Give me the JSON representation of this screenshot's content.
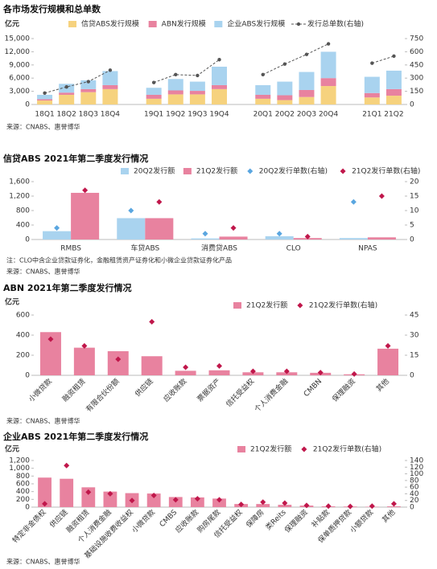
{
  "chart_data": [
    {
      "type": "bar",
      "stacked": true,
      "title": "各市场发行规模和总单数",
      "unit": "亿元",
      "source": "来源：CNABS、惠誉博华",
      "categories": [
        "18Q1",
        "18Q2",
        "18Q3",
        "18Q4",
        null,
        "19Q1",
        "19Q2",
        "19Q3",
        "19Q4",
        null,
        "20Q1",
        "20Q2",
        "20Q3",
        "20Q4",
        null,
        "21Q1",
        "21Q2"
      ],
      "series": [
        {
          "name": "信贷ABS发行规模",
          "type": "bar",
          "color": "#f6d27e",
          "values": [
            900,
            2200,
            2800,
            3500,
            null,
            1300,
            2300,
            2300,
            3500,
            null,
            1300,
            1000,
            1700,
            4200,
            null,
            1600,
            2000
          ]
        },
        {
          "name": "ABN发行规模",
          "type": "bar",
          "color": "#e8829f",
          "values": [
            300,
            500,
            700,
            900,
            null,
            900,
            900,
            800,
            900,
            null,
            900,
            1100,
            1600,
            1800,
            null,
            1000,
            1500
          ]
        },
        {
          "name": "企业ABS发行规模",
          "type": "bar",
          "color": "#a9d3ef",
          "values": [
            1000,
            2000,
            2000,
            3200,
            null,
            1600,
            2600,
            2100,
            4200,
            null,
            2200,
            3100,
            4100,
            6000,
            null,
            3700,
            4200
          ]
        },
        {
          "name": "发行总单数(右轴)",
          "type": "line",
          "axis": "y2",
          "color": "#555555",
          "values": [
            130,
            200,
            260,
            390,
            null,
            250,
            340,
            330,
            510,
            null,
            340,
            460,
            570,
            690,
            null,
            470,
            550
          ]
        }
      ],
      "ylim": [
        0,
        15000
      ],
      "yticks": [
        0,
        {
          "value": 3000,
          "label": "3,000"
        },
        {
          "value": 6000,
          "label": "6,000"
        },
        {
          "value": 9000,
          "label": "9,000"
        },
        {
          "value": 12000,
          "label": "12,000"
        },
        {
          "value": 15000,
          "label": "15,000"
        }
      ],
      "y2lim": [
        0,
        750
      ],
      "y2ticks": [
        0,
        150,
        300,
        450,
        600,
        750
      ],
      "grid": false
    },
    {
      "type": "bar",
      "stacked": false,
      "title": "信贷ABS 2021年第二季度发行情况",
      "note": "注：CLO中含企业贷款证券化，金融租赁资产证券化和小微企业贷款证券化产品",
      "source": "来源：CNABS、惠誉博华",
      "categories": [
        "RMBS",
        "车贷ABS",
        "消费贷ABS",
        "CLO",
        "NPAS"
      ],
      "series": [
        {
          "name": "20Q2发行额",
          "type": "bar",
          "color": "#a9d3ef",
          "values": [
            230,
            590,
            30,
            90,
            40
          ]
        },
        {
          "name": "21Q2发行额",
          "type": "bar",
          "color": "#e8829f",
          "values": [
            1290,
            590,
            80,
            40,
            60
          ]
        },
        {
          "name": "20Q2发行单数(右轴)",
          "type": "scatter",
          "axis": "y2",
          "color": "#5aa6e0",
          "values": [
            4,
            10,
            2,
            2,
            13
          ]
        },
        {
          "name": "21Q2发行单数(右轴)",
          "type": "scatter",
          "axis": "y2",
          "color": "#c0174b",
          "values": [
            17,
            13,
            4,
            1,
            15
          ]
        }
      ],
      "ylim": [
        0,
        1600
      ],
      "yticks": [
        0,
        400,
        800,
        {
          "value": 1200,
          "label": "1,200"
        },
        {
          "value": 1600,
          "label": "1,600"
        }
      ],
      "y2lim": [
        0,
        20
      ],
      "y2ticks": [
        0,
        5,
        10,
        15,
        20
      ],
      "grid": false
    },
    {
      "type": "bar",
      "stacked": false,
      "title": "ABN 2021年第二季度发行情况",
      "unit": "亿元",
      "source": "来源：CNABS、惠誉博华",
      "categories": [
        "小微贷款",
        "融资租赁",
        "有限合伙份额",
        "供应链",
        "应收账款",
        "票据资产",
        "信托受益权",
        "个人消费金融",
        "CMBN",
        "保理融资",
        "其他"
      ],
      "series": [
        {
          "name": "21Q2发行额",
          "type": "bar",
          "color": "#e8829f",
          "values": [
            430,
            275,
            240,
            190,
            45,
            50,
            30,
            30,
            25,
            10,
            265
          ]
        },
        {
          "name": "21Q2发行单数(右轴)",
          "type": "scatter",
          "axis": "y2",
          "color": "#c0174b",
          "values": [
            27,
            22,
            12,
            40,
            6,
            7,
            3,
            3,
            2,
            1,
            22
          ]
        }
      ],
      "ylim": [
        0,
        600
      ],
      "yticks": [
        0,
        200,
        400,
        600
      ],
      "y2lim": [
        0,
        45
      ],
      "y2ticks": [
        0,
        15,
        30,
        45
      ],
      "grid": false
    },
    {
      "type": "bar",
      "stacked": false,
      "title": "企业ABS 2021年第二季度发行情况",
      "unit": "亿元",
      "source": "来源：CNABS、惠誉博华",
      "categories": [
        "特定非金债权",
        "供应链",
        "融资租赁",
        "个人消费金融",
        "基础设施收费收益权",
        "小微贷款",
        "CMBS",
        "应收账款",
        "购房尾款",
        "信托受益权",
        "保障房",
        "类Reits",
        "保理融资",
        "补贴款",
        "保单质押贷款",
        "小额贷款",
        "其他"
      ],
      "series": [
        {
          "name": "21Q2发行额",
          "type": "bar",
          "color": "#e8829f",
          "values": [
            760,
            730,
            510,
            400,
            360,
            350,
            260,
            250,
            220,
            80,
            80,
            60,
            40,
            20,
            15,
            10,
            20
          ]
        },
        {
          "name": "21Q2发行单数(右轴)",
          "type": "scatter",
          "axis": "y2",
          "color": "#c0174b",
          "values": [
            10,
            125,
            45,
            40,
            20,
            35,
            22,
            25,
            22,
            8,
            15,
            12,
            5,
            3,
            2,
            3,
            10
          ]
        }
      ],
      "ylim": [
        0,
        1200
      ],
      "yticks": [
        0,
        200,
        400,
        600,
        800,
        {
          "value": 1000,
          "label": "1,000"
        },
        {
          "value": 1200,
          "label": "1,200"
        }
      ],
      "y2lim": [
        0,
        140
      ],
      "y2ticks": [
        0,
        20,
        40,
        60,
        80,
        100,
        120,
        140
      ],
      "grid": false
    }
  ]
}
